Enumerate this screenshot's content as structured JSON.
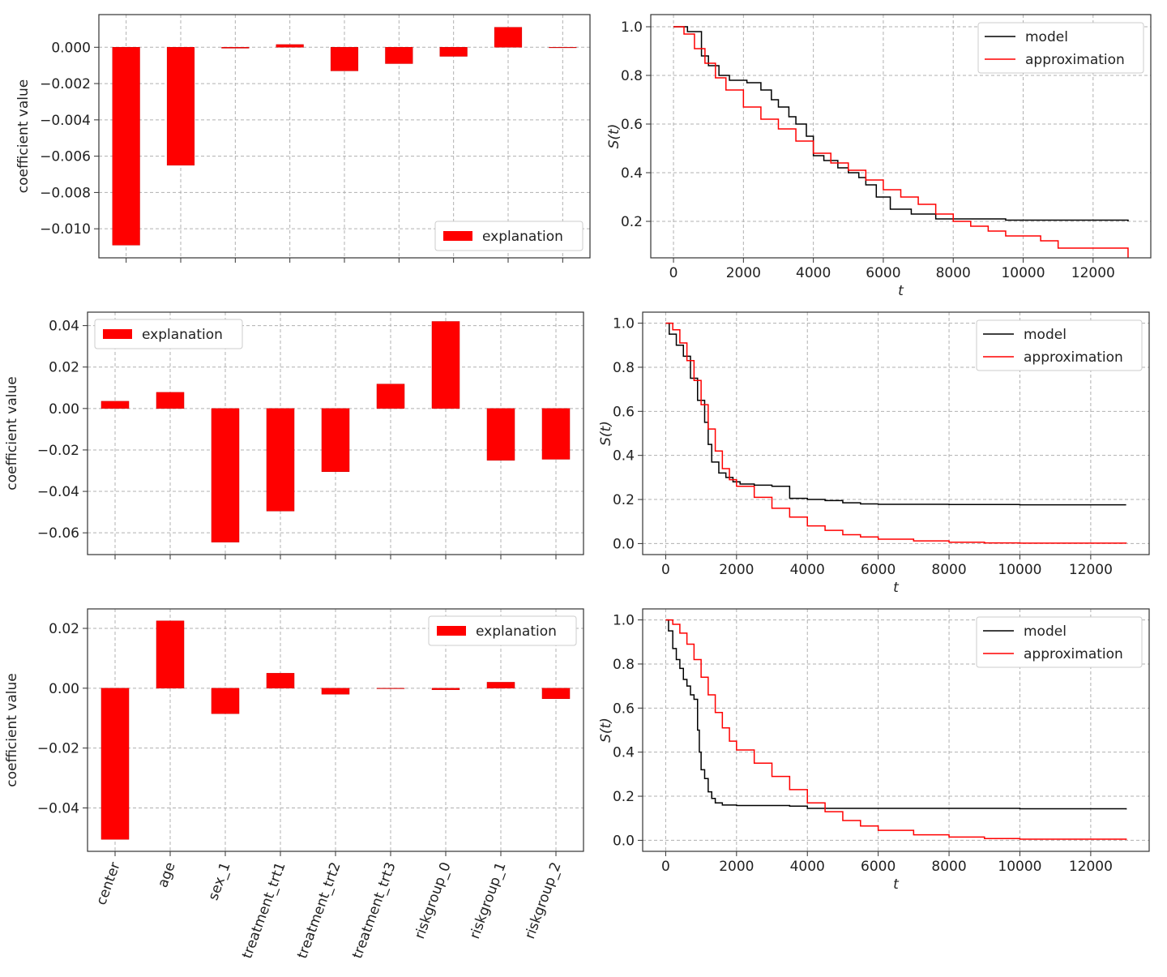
{
  "chart_data": [
    {
      "type": "bar",
      "panel": "row-1-left",
      "categories": [
        "center",
        "age",
        "sex_1",
        "treatment_trt1",
        "treatment_trt2",
        "treatment_trt3",
        "riskgroup_0",
        "riskgroup_1",
        "riskgroup_2"
      ],
      "series": [
        {
          "name": "explanation",
          "values": [
            -0.0109,
            -0.0065,
            -5e-05,
            0.00015,
            -0.0013,
            -0.0009,
            -0.0005,
            0.0011,
            0
          ]
        }
      ],
      "ylabel": "coefficient value",
      "ylim": [
        -0.0116,
        0.0018
      ],
      "yticks": [
        0.0,
        -0.002,
        -0.004,
        -0.006,
        -0.008,
        -0.01
      ],
      "ytick_labels": [
        "0.000",
        "−0.002",
        "−0.004",
        "−0.006",
        "−0.008",
        "−0.010"
      ],
      "xtick_labels_shown": false,
      "legend": "bottom-right",
      "grid": true,
      "bar_color": "#ff0000"
    },
    {
      "type": "line",
      "panel": "row-1-right",
      "xlabel": "t",
      "ylabel": "S(t)",
      "xlim": [
        -650,
        13650
      ],
      "ylim": [
        0.05,
        1.05
      ],
      "xticks": [
        0,
        2000,
        4000,
        6000,
        8000,
        10000,
        12000
      ],
      "xtick_labels": [
        "0",
        "2000",
        "4000",
        "6000",
        "8000",
        "10000",
        "12000"
      ],
      "yticks": [
        0.2,
        0.4,
        0.6,
        0.8,
        1.0
      ],
      "ytick_labels": [
        "0.2",
        "0.4",
        "0.6",
        "0.8",
        "1.0"
      ],
      "legend": "top-right",
      "grid": true,
      "series": [
        {
          "name": "model",
          "color": "#000000",
          "step": true,
          "x": [
            0,
            400,
            800,
            1000,
            1300,
            1600,
            2100,
            2500,
            2800,
            3000,
            3300,
            3500,
            3800,
            4000,
            4300,
            4700,
            5000,
            5300,
            5500,
            5800,
            6200,
            6800,
            7500,
            9500,
            13000
          ],
          "y": [
            1.0,
            0.98,
            0.88,
            0.84,
            0.8,
            0.78,
            0.77,
            0.74,
            0.7,
            0.67,
            0.63,
            0.6,
            0.55,
            0.47,
            0.45,
            0.42,
            0.4,
            0.38,
            0.35,
            0.3,
            0.25,
            0.23,
            0.21,
            0.205,
            0.2
          ]
        },
        {
          "name": "approximation",
          "color": "#ff0000",
          "step": true,
          "x": [
            0,
            300,
            600,
            900,
            1200,
            1500,
            2000,
            2500,
            3000,
            3500,
            4000,
            4500,
            5000,
            5500,
            6000,
            6500,
            7000,
            7500,
            8000,
            8500,
            9000,
            9500,
            10500,
            11000,
            13000
          ],
          "y": [
            1.0,
            0.97,
            0.91,
            0.85,
            0.79,
            0.74,
            0.67,
            0.62,
            0.58,
            0.53,
            0.48,
            0.44,
            0.41,
            0.37,
            0.33,
            0.3,
            0.27,
            0.23,
            0.2,
            0.18,
            0.16,
            0.14,
            0.12,
            0.09,
            0.05
          ]
        }
      ]
    },
    {
      "type": "bar",
      "panel": "row-2-left",
      "categories": [
        "center",
        "age",
        "sex_1",
        "treatment_trt1",
        "treatment_trt2",
        "treatment_trt3",
        "riskgroup_0",
        "riskgroup_1",
        "riskgroup_2"
      ],
      "series": [
        {
          "name": "explanation",
          "values": [
            0.0035,
            0.0078,
            -0.0645,
            -0.0495,
            -0.0305,
            0.0118,
            0.042,
            -0.025,
            -0.0245
          ]
        }
      ],
      "ylabel": "coefficient value",
      "ylim": [
        -0.0705,
        0.0465
      ],
      "yticks": [
        0.04,
        0.02,
        0.0,
        -0.02,
        -0.04,
        -0.06
      ],
      "ytick_labels": [
        "0.04",
        "0.02",
        "0.00",
        "−0.02",
        "−0.04",
        "−0.06"
      ],
      "xtick_labels_shown": false,
      "legend": "top-left",
      "grid": true,
      "bar_color": "#ff0000"
    },
    {
      "type": "line",
      "panel": "row-2-right",
      "xlabel": "t",
      "ylabel": "S(t)",
      "xlim": [
        -650,
        13650
      ],
      "ylim": [
        -0.05,
        1.05
      ],
      "xticks": [
        0,
        2000,
        4000,
        6000,
        8000,
        10000,
        12000
      ],
      "xtick_labels": [
        "0",
        "2000",
        "4000",
        "6000",
        "8000",
        "10000",
        "12000"
      ],
      "yticks": [
        0.0,
        0.2,
        0.4,
        0.6,
        0.8,
        1.0
      ],
      "ytick_labels": [
        "0.0",
        "0.2",
        "0.4",
        "0.6",
        "0.8",
        "1.0"
      ],
      "legend": "top-right",
      "grid": true,
      "series": [
        {
          "name": "model",
          "color": "#000000",
          "step": true,
          "x": [
            0,
            100,
            300,
            500,
            700,
            900,
            1100,
            1200,
            1300,
            1500,
            1700,
            1900,
            2100,
            2500,
            3000,
            3500,
            4000,
            4500,
            5000,
            5500,
            6000,
            8000,
            10000,
            13000
          ],
          "y": [
            1.0,
            0.95,
            0.9,
            0.85,
            0.75,
            0.65,
            0.55,
            0.45,
            0.37,
            0.32,
            0.3,
            0.28,
            0.27,
            0.265,
            0.26,
            0.205,
            0.2,
            0.195,
            0.185,
            0.18,
            0.178,
            0.177,
            0.176,
            0.176
          ]
        },
        {
          "name": "approximation",
          "color": "#ff0000",
          "step": true,
          "x": [
            0,
            200,
            400,
            600,
            800,
            1000,
            1200,
            1400,
            1600,
            1800,
            2000,
            2500,
            3000,
            3500,
            4000,
            4500,
            5000,
            5500,
            6000,
            7000,
            8000,
            9000,
            10000,
            13000
          ],
          "y": [
            1.0,
            0.97,
            0.91,
            0.83,
            0.74,
            0.63,
            0.52,
            0.42,
            0.34,
            0.29,
            0.26,
            0.21,
            0.16,
            0.12,
            0.08,
            0.06,
            0.04,
            0.03,
            0.02,
            0.012,
            0.006,
            0.003,
            0.002,
            0.001
          ]
        }
      ]
    },
    {
      "type": "bar",
      "panel": "row-3-left",
      "categories": [
        "center",
        "age",
        "sex_1",
        "treatment_trt1",
        "treatment_trt2",
        "treatment_trt3",
        "riskgroup_0",
        "riskgroup_1",
        "riskgroup_2"
      ],
      "series": [
        {
          "name": "explanation",
          "values": [
            -0.0505,
            0.0225,
            -0.0085,
            0.005,
            -0.002,
            0.0,
            -0.0005,
            0.002,
            -0.0035
          ]
        }
      ],
      "ylabel": "coefficient value",
      "ylim": [
        -0.0545,
        0.0265
      ],
      "yticks": [
        0.02,
        0.0,
        -0.02,
        -0.04
      ],
      "ytick_labels": [
        "0.02",
        "0.00",
        "−0.02",
        "−0.04"
      ],
      "xtick_labels_shown": true,
      "legend": "top-right",
      "grid": true,
      "bar_color": "#ff0000"
    },
    {
      "type": "line",
      "panel": "row-3-right",
      "xlabel": "t",
      "ylabel": "S(t)",
      "xlim": [
        -650,
        13650
      ],
      "ylim": [
        -0.05,
        1.05
      ],
      "xticks": [
        0,
        2000,
        4000,
        6000,
        8000,
        10000,
        12000
      ],
      "xtick_labels": [
        "0",
        "2000",
        "4000",
        "6000",
        "8000",
        "10000",
        "12000"
      ],
      "yticks": [
        0.0,
        0.2,
        0.4,
        0.6,
        0.8,
        1.0
      ],
      "ytick_labels": [
        "0.0",
        "0.2",
        "0.4",
        "0.6",
        "0.8",
        "1.0"
      ],
      "legend": "top-right",
      "grid": true,
      "series": [
        {
          "name": "model",
          "color": "#000000",
          "step": true,
          "x": [
            0,
            80,
            200,
            300,
            400,
            500,
            600,
            700,
            800,
            900,
            950,
            1000,
            1100,
            1200,
            1300,
            1400,
            1600,
            2000,
            3500,
            4000,
            6000,
            10000,
            13000
          ],
          "y": [
            1.0,
            0.95,
            0.87,
            0.82,
            0.78,
            0.73,
            0.7,
            0.66,
            0.64,
            0.5,
            0.4,
            0.32,
            0.28,
            0.22,
            0.19,
            0.17,
            0.16,
            0.158,
            0.155,
            0.145,
            0.145,
            0.143,
            0.14
          ]
        },
        {
          "name": "approximation",
          "color": "#ff0000",
          "step": true,
          "x": [
            0,
            200,
            400,
            600,
            800,
            1000,
            1200,
            1400,
            1600,
            1800,
            2000,
            2500,
            3000,
            3500,
            4000,
            4500,
            5000,
            5500,
            6000,
            7000,
            8000,
            9000,
            10000,
            13000
          ],
          "y": [
            1.0,
            0.98,
            0.94,
            0.89,
            0.82,
            0.74,
            0.66,
            0.58,
            0.51,
            0.45,
            0.41,
            0.35,
            0.29,
            0.23,
            0.17,
            0.13,
            0.09,
            0.065,
            0.045,
            0.025,
            0.015,
            0.008,
            0.005,
            0.002
          ]
        }
      ]
    }
  ]
}
